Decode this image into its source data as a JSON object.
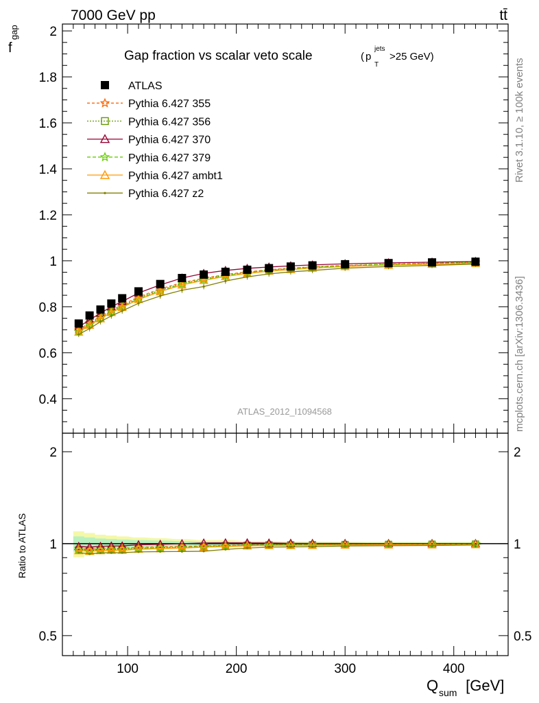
{
  "header": {
    "left": "7000 GeV pp",
    "right": "tt̄"
  },
  "side_labels": {
    "upper": "Rivet 3.1.10, ≥ 100k events",
    "lower": "mcplots.cern.ch [arXiv:1306.3436]"
  },
  "chart_data": {
    "type": "line",
    "title": "Gap fraction vs scalar veto scale",
    "title_cut": {
      "p": "p",
      "sup": "jets",
      "sub": "T",
      "rest": ">25 GeV)",
      "open": "("
    },
    "analysis_label": "ATLAS_2012_I1094568",
    "xlabel": {
      "main": "Q",
      "sub": "sum",
      "rest": " [GeV]"
    },
    "ylabel": {
      "main": "f",
      "sub": "gap"
    },
    "ratio_ylabel": "Ratio to ATLAS",
    "xlim": [
      40,
      450
    ],
    "ylim": [
      0.25,
      2.03
    ],
    "ratio_ylim": [
      0.43,
      2.3
    ],
    "ratio_scale": "log",
    "x_ticks": [
      100,
      200,
      300,
      400
    ],
    "y_ticks": [
      0.4,
      0.6,
      0.8,
      1,
      1.2,
      1.4,
      1.6,
      1.8,
      2
    ],
    "ratio_ticks": [
      0.5,
      1,
      2
    ],
    "grid": false,
    "legend_position": "top-left",
    "x": [
      55,
      65,
      75,
      85,
      95,
      110,
      130,
      150,
      170,
      190,
      210,
      230,
      250,
      270,
      300,
      340,
      380,
      420
    ],
    "data": {
      "name": "ATLAS",
      "color": "#000000",
      "marker": "filled-square",
      "values": [
        0.727,
        0.762,
        0.788,
        0.814,
        0.837,
        0.867,
        0.899,
        0.925,
        0.94,
        0.952,
        0.961,
        0.968,
        0.975,
        0.98,
        0.985,
        0.99,
        0.993,
        0.996
      ]
    },
    "series": [
      {
        "name": "Pythia 6.427 355",
        "color": "#ff6600",
        "dash": "4,3",
        "marker": "star",
        "values": [
          0.7,
          0.73,
          0.758,
          0.785,
          0.808,
          0.843,
          0.878,
          0.905,
          0.924,
          0.94,
          0.952,
          0.961,
          0.968,
          0.974,
          0.98,
          0.986,
          0.99,
          0.994
        ]
      },
      {
        "name": "Pythia 6.427 356",
        "color": "#669900",
        "dash": "2,2",
        "marker": "open-square",
        "values": [
          0.695,
          0.726,
          0.752,
          0.78,
          0.803,
          0.838,
          0.873,
          0.901,
          0.921,
          0.938,
          0.95,
          0.96,
          0.967,
          0.973,
          0.979,
          0.985,
          0.989,
          0.993
        ]
      },
      {
        "name": "Pythia 6.427 370",
        "color": "#990033",
        "dash": "",
        "marker": "open-triangle",
        "values": [
          0.712,
          0.743,
          0.772,
          0.8,
          0.823,
          0.86,
          0.895,
          0.925,
          0.945,
          0.958,
          0.967,
          0.973,
          0.978,
          0.982,
          0.987,
          0.991,
          0.994,
          0.997
        ]
      },
      {
        "name": "Pythia 6.427 379",
        "color": "#66cc00",
        "dash": "5,3",
        "marker": "star",
        "values": [
          0.692,
          0.722,
          0.75,
          0.778,
          0.8,
          0.835,
          0.87,
          0.898,
          0.918,
          0.935,
          0.948,
          0.958,
          0.965,
          0.971,
          0.978,
          0.984,
          0.988,
          0.992
        ]
      },
      {
        "name": "Pythia 6.427 ambt1",
        "color": "#ff9900",
        "dash": "",
        "marker": "open-triangle",
        "values": [
          0.69,
          0.72,
          0.748,
          0.775,
          0.797,
          0.832,
          0.866,
          0.895,
          0.915,
          0.932,
          0.945,
          0.955,
          0.962,
          0.968,
          0.975,
          0.981,
          0.985,
          0.989
        ]
      },
      {
        "name": "Pythia 6.427 z2",
        "color": "#808000",
        "dash": "",
        "marker": "dot",
        "values": [
          0.68,
          0.705,
          0.735,
          0.76,
          0.782,
          0.815,
          0.847,
          0.872,
          0.888,
          0.912,
          0.93,
          0.943,
          0.952,
          0.958,
          0.968,
          0.975,
          0.98,
          0.986
        ]
      }
    ]
  }
}
